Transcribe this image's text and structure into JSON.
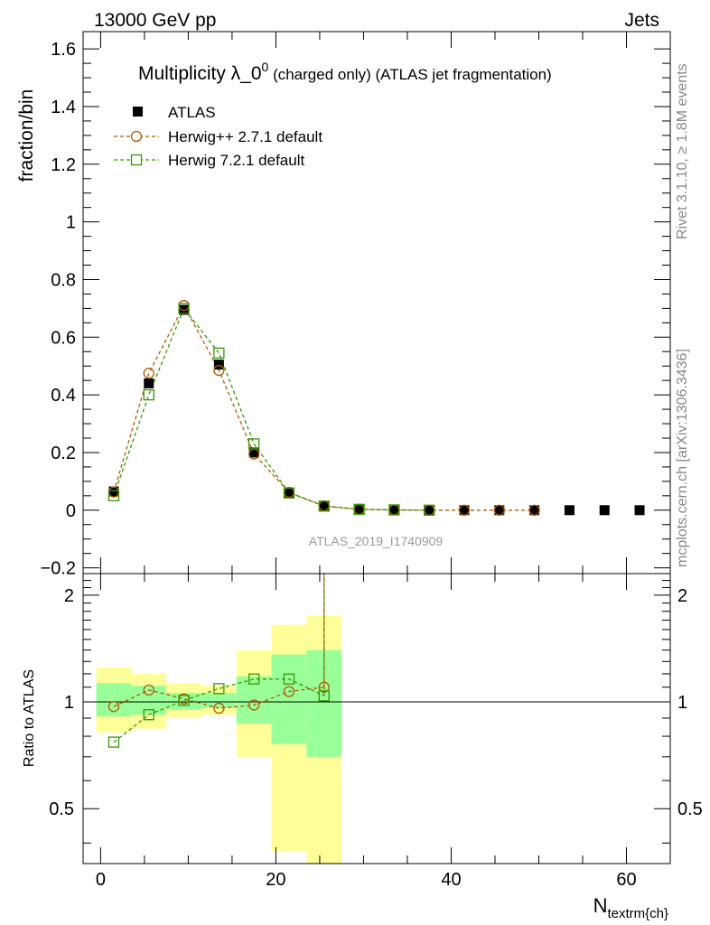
{
  "header": {
    "left": "13000 GeV pp",
    "right": "Jets"
  },
  "side_labels": {
    "rivet": "Rivet 3.1.10, ≥ 1.8M events",
    "mcplots": "mcplots.cern.ch [arXiv:1306.3436]"
  },
  "analysis_id": "ATLAS_2019_I1740909",
  "colors": {
    "data": "#000000",
    "herwigpp": "#b35900",
    "herwig7": "#339900",
    "band_inner": "#99ff99",
    "band_outer": "#ffff99"
  },
  "chart_data": [
    {
      "type": "scatter",
      "title_main": "Multiplicity λ_0",
      "title_sup": "0",
      "title_rest": " (charged only) (ATLAS jet fragmentation)",
      "ylabel": "fraction/bin",
      "xlim": [
        -2,
        65
      ],
      "ylim": [
        -0.22,
        1.66
      ],
      "yticks": [
        -0.2,
        0,
        0.2,
        0.4,
        0.6,
        0.8,
        1,
        1.2,
        1.4,
        1.6
      ],
      "ytick_labels": [
        "−0.2",
        "0",
        "0.2",
        "0.4",
        "0.6",
        "0.8",
        "1",
        "1.2",
        "1.4",
        "1.6"
      ],
      "legend_position": "top-left",
      "series": [
        {
          "name": "ATLAS",
          "marker": "filled-square",
          "x": [
            1.5,
            5.5,
            9.5,
            13.5,
            17.5,
            21.5,
            25.5,
            29.5,
            33.5,
            37.5,
            41.5,
            45.5,
            49.5,
            53.5,
            57.5,
            61.5
          ],
          "y": [
            0.065,
            0.44,
            0.695,
            0.505,
            0.2,
            0.058,
            0.014,
            0.003,
            0.001,
            0.0,
            0.0,
            0.0,
            0.0,
            0.0,
            0.0,
            0.0
          ]
        },
        {
          "name": "Herwig++ 2.7.1 default",
          "marker": "open-circle",
          "x": [
            1.5,
            5.5,
            9.5,
            13.5,
            17.5,
            21.5,
            25.5,
            29.5,
            33.5,
            37.5,
            41.5,
            45.5,
            49.5
          ],
          "y": [
            0.063,
            0.475,
            0.71,
            0.485,
            0.195,
            0.062,
            0.015,
            0.003,
            0.001,
            0.0,
            0.0,
            0.0,
            0.0
          ]
        },
        {
          "name": "Herwig 7.2.1 default",
          "marker": "open-square",
          "x": [
            1.5,
            5.5,
            9.5,
            13.5,
            17.5,
            21.5,
            25.5,
            29.5,
            33.5,
            37.5
          ],
          "y": [
            0.05,
            0.4,
            0.7,
            0.545,
            0.23,
            0.06,
            0.014,
            0.003,
            0.001,
            0.0
          ]
        }
      ]
    },
    {
      "type": "scatter",
      "ylabel": "Ratio to ATLAS",
      "xlabel_main": "N",
      "xlabel_sub": "textrm{ch}",
      "xlim": [
        -2,
        65
      ],
      "ylim": [
        0.35,
        2.3
      ],
      "yticks": [
        0.5,
        1,
        2
      ],
      "ytick_labels": [
        "0.5",
        "1",
        "2"
      ],
      "xticks": [
        0,
        20,
        40,
        60
      ],
      "xtick_labels": [
        "0",
        "20",
        "40",
        "60"
      ],
      "bands": [
        {
          "x0": -0.5,
          "x1": 3.5,
          "outer": [
            0.82,
            1.25
          ],
          "inner": [
            0.91,
            1.13
          ]
        },
        {
          "x0": 3.5,
          "x1": 7.5,
          "outer": [
            0.84,
            1.2
          ],
          "inner": [
            0.92,
            1.11
          ]
        },
        {
          "x0": 7.5,
          "x1": 11.5,
          "outer": [
            0.9,
            1.13
          ],
          "inner": [
            0.95,
            1.06
          ]
        },
        {
          "x0": 11.5,
          "x1": 15.5,
          "outer": [
            0.92,
            1.11
          ],
          "inner": [
            0.96,
            1.06
          ]
        },
        {
          "x0": 15.5,
          "x1": 19.5,
          "outer": [
            0.7,
            1.4
          ],
          "inner": [
            0.87,
            1.18
          ]
        },
        {
          "x0": 19.5,
          "x1": 23.5,
          "outer": [
            0.38,
            1.65
          ],
          "inner": [
            0.76,
            1.36
          ]
        },
        {
          "x0": 23.5,
          "x1": 27.5,
          "outer": [
            0.3,
            1.75
          ],
          "inner": [
            0.7,
            1.4
          ]
        }
      ],
      "series": [
        {
          "name": "Herwig++ 2.7.1 default",
          "marker": "open-circle",
          "x": [
            1.5,
            5.5,
            9.5,
            13.5,
            17.5,
            21.5,
            25.5
          ],
          "y": [
            0.97,
            1.08,
            1.02,
            0.96,
            0.98,
            1.07,
            1.1
          ]
        },
        {
          "name": "Herwig 7.2.1 default",
          "marker": "open-square",
          "x": [
            1.5,
            5.5,
            9.5,
            13.5,
            17.5,
            21.5,
            25.5
          ],
          "y": [
            0.77,
            0.92,
            1.01,
            1.09,
            1.16,
            1.16,
            1.04
          ]
        }
      ]
    }
  ]
}
